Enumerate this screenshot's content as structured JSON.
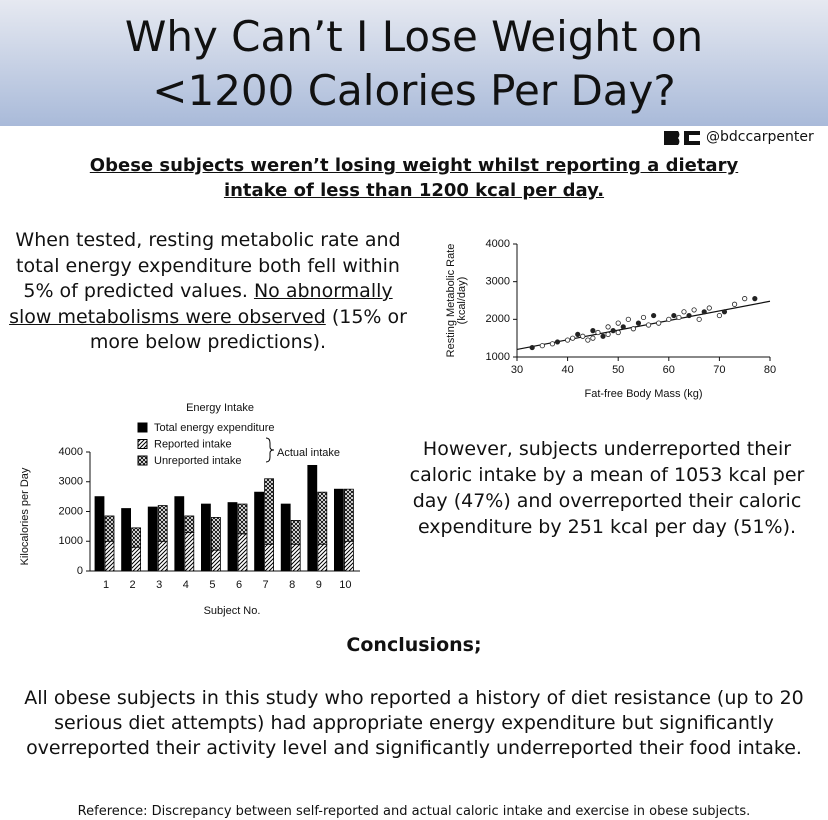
{
  "header": {
    "title_lines": [
      "Why Can’t I Lose Weight on",
      "<1200 Calories Per Day?"
    ],
    "handle": "@bdccarpenter"
  },
  "subtitle_lines": [
    "Obese subjects weren’t losing weight whilst reporting a dietary",
    "intake of less than 1200 kcal per day."
  ],
  "left_text": {
    "intro": "When tested, resting metabolic rate and total energy expenditure both fell within 5% of predicted values.",
    "underlined": "No abnormally slow metabolisms were observed",
    "rest": "(15% or more below predictions)."
  },
  "right_text": "However, subjects underreported their caloric intake by a mean of 1053 kcal per day (47%) and overreported their caloric expenditure by 251 kcal per day (51%).",
  "conclusions": {
    "heading": "Conclusions;",
    "text": "All obese subjects in this study who reported a history of diet resistance (up to 20 serious diet attempts) had appropriate energy expenditure but significantly overreported their activity level and significantly underreported their food intake."
  },
  "reference": "Reference: Discrepancy between self-reported and actual caloric intake and exercise in obese subjects.",
  "chart_data": [
    {
      "type": "scatter",
      "xlabel": "Fat-free Body Mass (kg)",
      "ylabel": [
        "Resting Metabolic Rate",
        "(kcal/day)"
      ],
      "xlim": [
        30,
        80
      ],
      "ylim": [
        1000,
        4000
      ],
      "xticks": [
        30,
        40,
        50,
        60,
        70,
        80
      ],
      "yticks": [
        1000,
        2000,
        3000,
        4000
      ],
      "color": "#222222",
      "x": [
        33,
        35,
        37,
        38,
        40,
        41,
        42,
        43,
        44,
        45,
        45,
        46,
        47,
        48,
        48,
        49,
        50,
        50,
        51,
        52,
        53,
        54,
        55,
        56,
        57,
        58,
        60,
        61,
        62,
        63,
        64,
        65,
        66,
        67,
        68,
        70,
        71,
        73,
        75,
        77
      ],
      "y": [
        1250,
        1300,
        1350,
        1400,
        1450,
        1500,
        1600,
        1550,
        1450,
        1700,
        1500,
        1650,
        1550,
        1800,
        1600,
        1700,
        1900,
        1650,
        1800,
        2000,
        1750,
        1900,
        2050,
        1850,
        2100,
        1900,
        2000,
        2100,
        2050,
        2200,
        2100,
        2250,
        2000,
        2200,
        2300,
        2100,
        2200,
        2400,
        2550,
        2550
      ],
      "trend": {
        "x": [
          30,
          80
        ],
        "y": [
          1200,
          2480
        ]
      }
    },
    {
      "type": "bar",
      "title": "Energy Intake",
      "xlabel": "Subject No.",
      "ylabel": "Kilocalories per Day",
      "categories": [
        "1",
        "2",
        "3",
        "4",
        "5",
        "6",
        "7",
        "8",
        "9",
        "10"
      ],
      "ylim": [
        0,
        4000
      ],
      "yticks": [
        0,
        1000,
        2000,
        3000,
        4000
      ],
      "legend_group_label": "Actual intake",
      "series": [
        {
          "name": "Total energy expenditure",
          "color": "#000000",
          "fill_pattern": "solid",
          "values": [
            2500,
            2100,
            2150,
            2500,
            2250,
            2300,
            2650,
            2250,
            3550,
            2750
          ]
        },
        {
          "name": "Unreported intake",
          "color": "#000000",
          "fill_pattern": "crosshatch",
          "stack": "intake",
          "values": [
            850,
            650,
            1200,
            550,
            1100,
            1000,
            2200,
            800,
            1750,
            1750
          ]
        },
        {
          "name": "Reported intake",
          "color": "#000000",
          "fill_pattern": "diagonal",
          "stack": "intake",
          "values": [
            1000,
            800,
            1000,
            1300,
            700,
            1250,
            900,
            900,
            900,
            1000
          ]
        }
      ]
    }
  ]
}
